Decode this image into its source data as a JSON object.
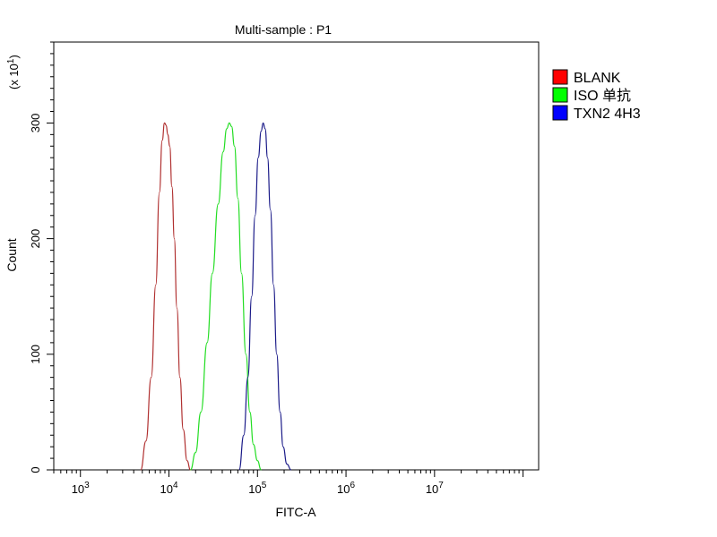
{
  "chart_data": {
    "type": "line",
    "title": "Multi-sample : P1",
    "xlabel": "FITC-A",
    "ylabel": "Count",
    "y_multiplier_label": {
      "prefix": "(x 10",
      "exponent": "1",
      "suffix": ")"
    },
    "x_scale": "log",
    "xlim": [
      500,
      150000000
    ],
    "ylim": [
      0,
      370
    ],
    "x_ticks": [
      {
        "base": "10",
        "exponent": "3",
        "value": 1000
      },
      {
        "base": "10",
        "exponent": "4",
        "value": 10000
      },
      {
        "base": "10",
        "exponent": "5",
        "value": 100000
      },
      {
        "base": "10",
        "exponent": "6",
        "value": 1000000
      },
      {
        "base": "10",
        "exponent": "7",
        "value": 10000000
      }
    ],
    "y_ticks": [
      {
        "label": "0",
        "value": 0
      },
      {
        "label": "100",
        "value": 100
      },
      {
        "label": "200",
        "value": 200
      },
      {
        "label": "300",
        "value": 300
      }
    ],
    "grid": false,
    "legend_position": "top-right",
    "series": [
      {
        "name": "BLANK",
        "color": "#b03030",
        "swatch_color": "#ff0000",
        "x": [
          4800,
          5500,
          6300,
          7100,
          7800,
          8400,
          8900,
          9300,
          9700,
          10200,
          10800,
          11500,
          12300,
          13300,
          14500,
          16000,
          17500
        ],
        "y": [
          0,
          25,
          80,
          160,
          240,
          285,
          300,
          298,
          290,
          280,
          245,
          200,
          140,
          80,
          35,
          8,
          0
        ]
      },
      {
        "name": "ISO 单抗",
        "color": "#22dd22",
        "swatch_color": "#00ff00",
        "x": [
          17500,
          20000,
          23000,
          27000,
          31000,
          36000,
          41000,
          45000,
          48000,
          51000,
          55000,
          60000,
          66000,
          74000,
          82000,
          90000,
          100000,
          110000
        ],
        "y": [
          0,
          15,
          50,
          110,
          170,
          230,
          275,
          295,
          300,
          297,
          280,
          235,
          170,
          100,
          50,
          22,
          8,
          0
        ]
      },
      {
        "name": "TXN2 4H3",
        "color": "#1a1a88",
        "swatch_color": "#0000ff",
        "x": [
          62000,
          70000,
          78000,
          86000,
          94000,
          102000,
          110000,
          116000,
          122000,
          130000,
          140000,
          152000,
          165000,
          180000,
          195000,
          215000,
          240000
        ],
        "y": [
          0,
          30,
          80,
          150,
          220,
          270,
          293,
          300,
          295,
          270,
          225,
          160,
          100,
          50,
          20,
          5,
          0
        ]
      }
    ]
  }
}
